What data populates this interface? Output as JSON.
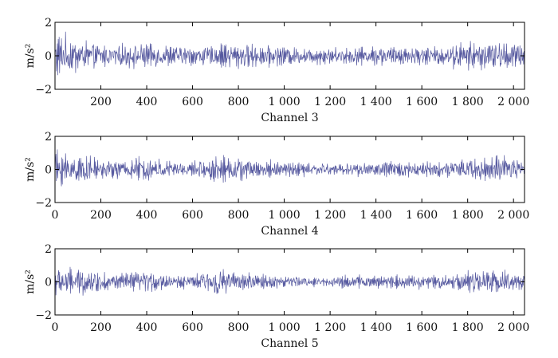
{
  "chart_data": [
    {
      "type": "line",
      "xlabel": "Channel 3",
      "ylabel": "m/s²",
      "xlim": [
        0,
        2048
      ],
      "ylim": [
        -2,
        2
      ],
      "xticks": [
        200,
        400,
        600,
        800,
        1000,
        1200,
        1400,
        1600,
        1800,
        2000
      ],
      "xtick_labels": [
        "200",
        "400",
        "600",
        "800",
        "1 000",
        "1 200",
        "1 400",
        "1 600",
        "1 800",
        "2 000"
      ],
      "yticks": [
        -2,
        0,
        2
      ],
      "ytick_labels": [
        "−2",
        "0",
        "2"
      ],
      "series": [
        {
          "color": "#3a3d8f",
          "x": [
            0,
            100,
            200,
            300,
            400,
            500,
            600,
            700,
            800,
            900,
            1000,
            1100,
            1200,
            1300,
            1400,
            1500,
            1600,
            1700,
            1800,
            1900,
            2000,
            2048
          ],
          "envelope": [
            1.9,
            1.4,
            0.9,
            0.9,
            1.1,
            0.9,
            0.8,
            0.9,
            1.1,
            0.9,
            0.8,
            0.7,
            0.7,
            0.7,
            0.8,
            0.8,
            0.8,
            0.8,
            1.1,
            1.2,
            1.1,
            0.9
          ]
        }
      ]
    },
    {
      "type": "line",
      "xlabel": "Channel 4",
      "ylabel": "m/s²",
      "xlim": [
        0,
        2048
      ],
      "ylim": [
        -2,
        2
      ],
      "xticks": [
        0,
        200,
        400,
        600,
        800,
        1000,
        1200,
        1400,
        1600,
        1800,
        2000
      ],
      "xtick_labels": [
        "0",
        "200",
        "400",
        "600",
        "800",
        "1 000",
        "1 200",
        "1 400",
        "1 600",
        "1 800",
        "2 000"
      ],
      "yticks": [
        -2,
        0,
        2
      ],
      "ytick_labels": [
        "−2",
        "0",
        "2"
      ],
      "series": [
        {
          "color": "#3a3d8f",
          "x": [
            0,
            100,
            200,
            300,
            400,
            500,
            600,
            700,
            800,
            900,
            1000,
            1100,
            1200,
            1300,
            1400,
            1500,
            1600,
            1700,
            1800,
            1900,
            2000,
            2048
          ],
          "envelope": [
            1.7,
            1.2,
            0.8,
            0.8,
            1.1,
            0.7,
            0.6,
            1.1,
            0.9,
            0.8,
            0.6,
            0.6,
            0.5,
            0.6,
            0.6,
            0.7,
            0.6,
            0.6,
            0.9,
            1.1,
            1.0,
            0.8
          ]
        }
      ]
    },
    {
      "type": "line",
      "xlabel": "Channel 5",
      "ylabel": "m/s²",
      "xlim": [
        0,
        2048
      ],
      "ylim": [
        -2,
        2
      ],
      "xticks": [
        0,
        200,
        400,
        600,
        800,
        1000,
        1200,
        1400,
        1600,
        1800,
        2000
      ],
      "xtick_labels": [
        "0",
        "200",
        "400",
        "600",
        "800",
        "1 000",
        "1 200",
        "1 400",
        "1 600",
        "1 800",
        "2 000"
      ],
      "yticks": [
        -2,
        0,
        2
      ],
      "ytick_labels": [
        "−2",
        "0",
        "2"
      ],
      "series": [
        {
          "color": "#3a3d8f",
          "x": [
            0,
            100,
            200,
            300,
            400,
            500,
            600,
            700,
            800,
            900,
            1000,
            1100,
            1200,
            1300,
            1400,
            1500,
            1600,
            1700,
            1800,
            1900,
            2000,
            2048
          ],
          "envelope": [
            1.3,
            1.1,
            0.8,
            0.8,
            0.9,
            0.6,
            0.5,
            1.2,
            0.7,
            0.7,
            0.5,
            0.4,
            0.5,
            0.5,
            0.5,
            0.6,
            0.6,
            0.6,
            0.9,
            0.9,
            0.8,
            0.7
          ]
        }
      ]
    }
  ]
}
